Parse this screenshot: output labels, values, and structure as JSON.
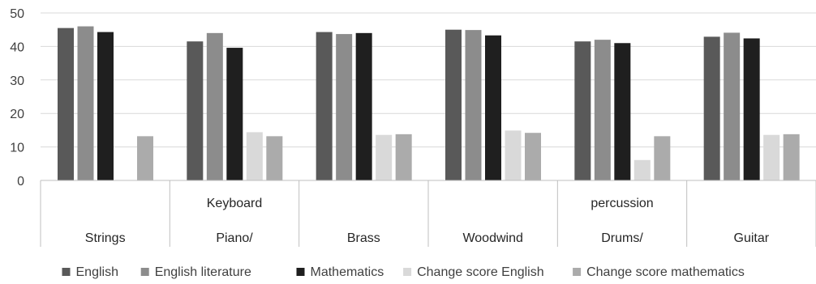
{
  "chart_data": {
    "type": "bar",
    "categories": [
      {
        "lines": [
          "Strings"
        ]
      },
      {
        "lines": [
          "Keyboard",
          "Piano/"
        ]
      },
      {
        "lines": [
          "Brass"
        ]
      },
      {
        "lines": [
          "Woodwind"
        ]
      },
      {
        "lines": [
          "percussion",
          "Drums/"
        ]
      },
      {
        "lines": [
          "Guitar"
        ]
      }
    ],
    "series": [
      {
        "name": "English",
        "color": "#595959",
        "values": [
          45.5,
          41.5,
          44.3,
          45.0,
          41.5,
          42.9
        ]
      },
      {
        "name": "English literature",
        "color": "#8c8c8c",
        "values": [
          46.0,
          44.0,
          43.7,
          44.9,
          42.0,
          44.1
        ]
      },
      {
        "name": "Mathematics",
        "color": "#1f1f1f",
        "values": [
          44.3,
          39.6,
          44.0,
          43.3,
          41.0,
          42.4
        ]
      },
      {
        "name": "Change score English",
        "color": "#d9d9d9",
        "values": [
          null,
          14.4,
          13.6,
          14.9,
          6.1,
          13.6
        ]
      },
      {
        "name": "Change score mathematics",
        "color": "#ababab",
        "values": [
          13.2,
          13.2,
          13.8,
          14.2,
          13.2,
          13.8
        ]
      }
    ],
    "y_ticks": [
      0,
      10,
      20,
      30,
      40,
      50
    ],
    "ylim": [
      0,
      50
    ],
    "grid": true,
    "legend_position": "bottom"
  }
}
